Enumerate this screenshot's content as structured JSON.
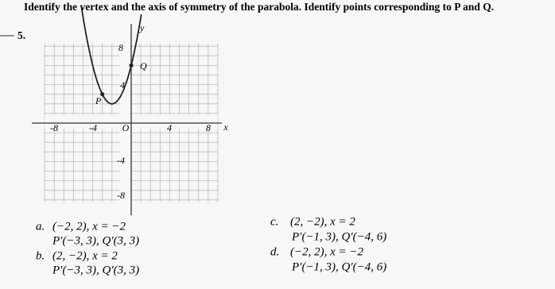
{
  "header": {
    "instruction": "Identify the vertex and the axis of symmetry of the parabola. Identify points corresponding to P and Q."
  },
  "problem": {
    "number": "5."
  },
  "graph": {
    "x_labels": [
      "-8",
      "-4",
      "O",
      "4",
      "8",
      "x"
    ],
    "y_labels": [
      "8",
      "4",
      "-4",
      "-8"
    ],
    "y_axis_label": "y",
    "point_labels": [
      "P",
      "Q"
    ]
  },
  "choices": [
    {
      "letter": "a.",
      "vertex": "(−2, 2), x = −2",
      "points": "P′(−3, 3), Q′(3, 3)"
    },
    {
      "letter": "b.",
      "vertex": "(2, −2), x = 2",
      "points": "P′(−3, 3), Q′(3, 3)"
    },
    {
      "letter": "c.",
      "vertex": "(2, −2), x = 2",
      "points": "P′(−1, 3), Q′(−4, 6)"
    },
    {
      "letter": "d.",
      "vertex": "(−2, 2), x = −2",
      "points": "P′(−1, 3), Q′(−4, 6)"
    }
  ]
}
